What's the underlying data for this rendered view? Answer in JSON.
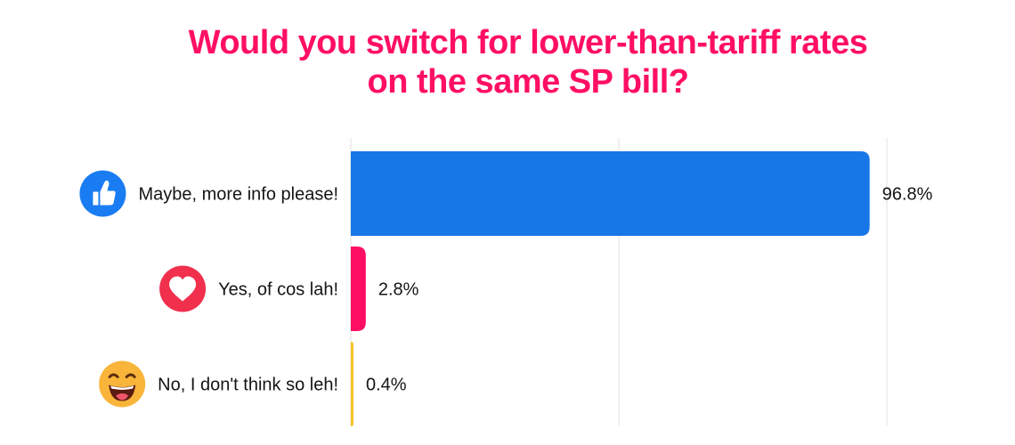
{
  "chart_data": {
    "type": "bar",
    "orientation": "horizontal",
    "title_lines": [
      "Would you switch for lower-than-tariff rates",
      "on the same SP bill?"
    ],
    "categories": [
      "Maybe, more info please!",
      "Yes, of cos lah!",
      "No, I don't think so leh!"
    ],
    "values": [
      96.8,
      2.8,
      0.4
    ],
    "value_labels": [
      "96.8%",
      "2.8%",
      "0.4%"
    ],
    "bar_colors": [
      "#1877e6",
      "#ff0f64",
      "#f7c326"
    ],
    "icons": [
      "thumbs-up-icon",
      "heart-icon",
      "laughing-face-icon"
    ],
    "xlim": [
      0,
      100
    ],
    "grid": true,
    "legend": "none"
  }
}
